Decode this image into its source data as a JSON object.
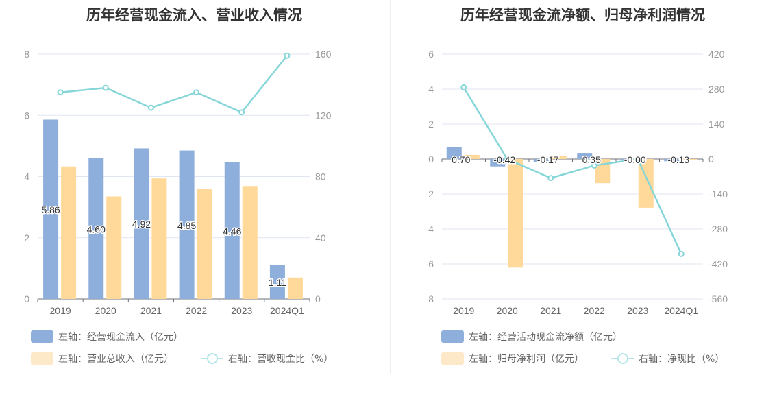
{
  "colors": {
    "bar_primary": "#8eafdb",
    "bar_secondary": "#ffd99a",
    "line": "#86d6d9",
    "legend_secondary": "#fde8c8"
  },
  "chart_data": [
    {
      "type": "bar",
      "title": "历年经营现金流入、营业收入情况",
      "categories": [
        "2019",
        "2020",
        "2021",
        "2022",
        "2023",
        "2024Q1"
      ],
      "left_axis": {
        "ylim": [
          0,
          8
        ],
        "ticks": [
          "0",
          "2",
          "4",
          "6",
          "8"
        ]
      },
      "right_axis": {
        "ylim": [
          0,
          160
        ],
        "ticks": [
          "0",
          "40",
          "80",
          "120",
          "160"
        ]
      },
      "series": [
        {
          "name": "左轴：经营现金流入（亿元）",
          "axis": "left",
          "kind": "bar",
          "values": [
            5.86,
            4.6,
            4.92,
            4.85,
            4.46,
            1.11
          ],
          "labels": [
            "5.86",
            "4.60",
            "4.92",
            "4.85",
            "4.46",
            "1.11"
          ]
        },
        {
          "name": "左轴：营业总收入（亿元）",
          "axis": "left",
          "kind": "bar",
          "values": [
            4.33,
            3.35,
            3.94,
            3.59,
            3.67,
            0.7
          ]
        },
        {
          "name": "右轴：营收现金比（%）",
          "axis": "right",
          "kind": "line",
          "values": [
            135,
            138,
            125,
            135,
            122,
            159
          ]
        }
      ]
    },
    {
      "type": "bar",
      "title": "历年经营现金流净额、归母净利润情况",
      "categories": [
        "2019",
        "2020",
        "2021",
        "2022",
        "2023",
        "2024Q1"
      ],
      "left_axis": {
        "ylim": [
          -8,
          6
        ],
        "ticks": [
          "-8",
          "-6",
          "-4",
          "-2",
          "0",
          "2",
          "4",
          "6"
        ]
      },
      "right_axis": {
        "ylim": [
          -560,
          420
        ],
        "ticks": [
          "-560",
          "-420",
          "-280",
          "-140",
          "0",
          "140",
          "280",
          "420"
        ]
      },
      "series": [
        {
          "name": "左轴：经营活动现金流净额（亿元）",
          "axis": "left",
          "kind": "bar",
          "values": [
            0.7,
            -0.42,
            -0.17,
            0.35,
            -0.0,
            -0.13
          ],
          "labels": [
            "0.70",
            "-0.42",
            "-0.17",
            "0.35",
            "-0.00",
            "-0.13"
          ]
        },
        {
          "name": "左轴：归母净利润（亿元）",
          "axis": "left",
          "kind": "bar",
          "values": [
            0.24,
            -6.21,
            0.18,
            -1.38,
            -2.78,
            -0.03
          ]
        },
        {
          "name": "右轴：净现比（%）",
          "axis": "right",
          "kind": "line",
          "values": [
            287,
            0,
            -76,
            -26,
            0,
            -380
          ]
        }
      ]
    }
  ]
}
